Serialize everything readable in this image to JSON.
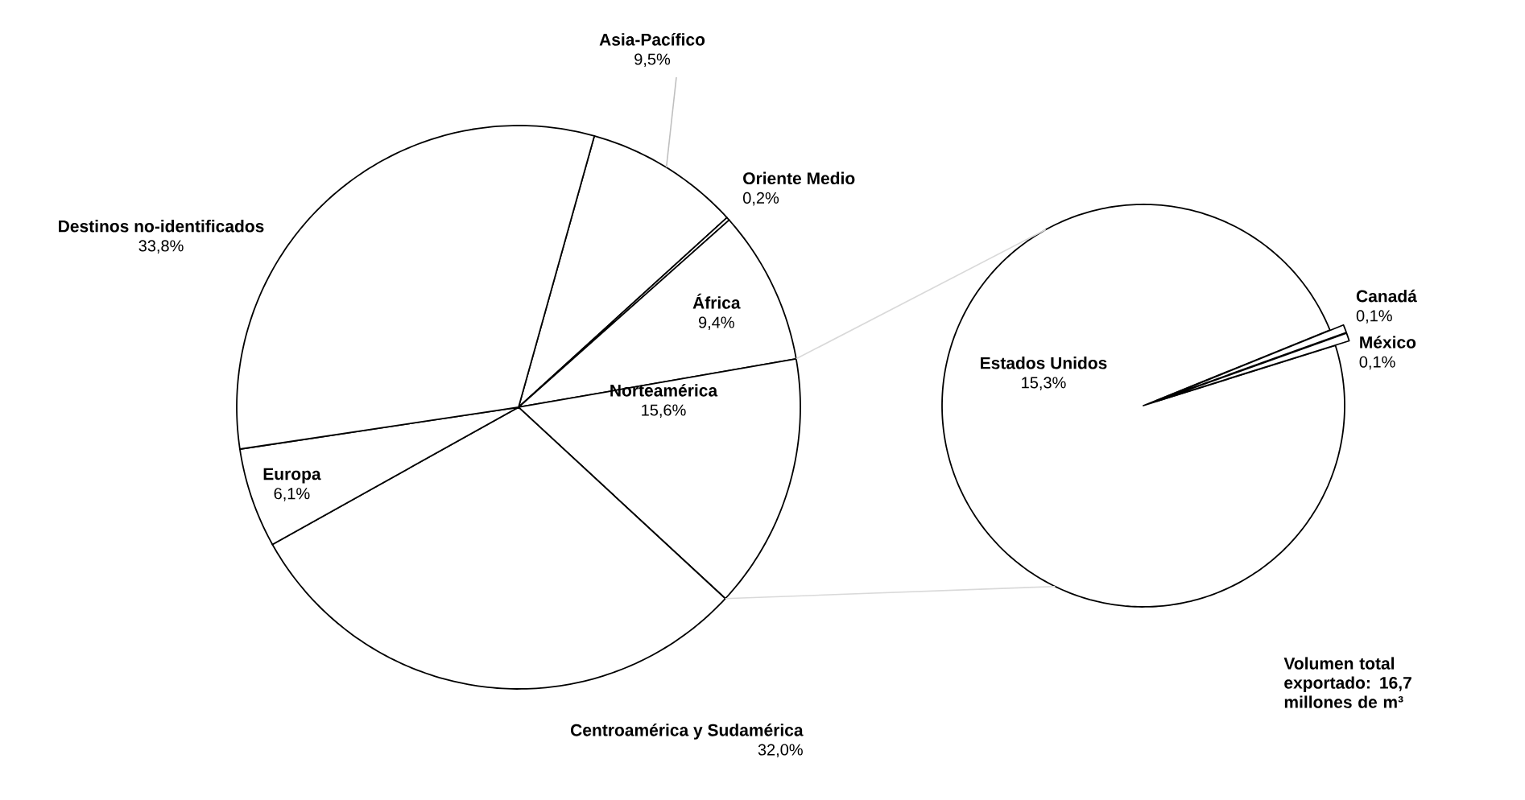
{
  "chart_data": [
    {
      "type": "pie",
      "categories": [
        "Asia-Pacífico",
        "Oriente Medio",
        "África",
        "Norteamérica",
        "Centroamérica y Sudamérica",
        "Europa",
        "Destinos no-identificados"
      ],
      "values": [
        9.5,
        0.2,
        9.4,
        15.6,
        32.0,
        6.1,
        33.8
      ],
      "value_labels": [
        "9,5%",
        "0,2%",
        "9,4%",
        "15,6%",
        "32,0%",
        "6,1%",
        "33,8%"
      ],
      "colors": [
        "#ffffff",
        "#ffffff",
        "#ffffff",
        "#ffffff",
        "#ffffff",
        "#ffffff",
        "#ffffff"
      ]
    },
    {
      "type": "pie",
      "categories": [
        "Estados Unidos",
        "Canadá",
        "México"
      ],
      "values": [
        15.3,
        0.1,
        0.1
      ],
      "value_labels": [
        "15,3%",
        "0,1%",
        "0,1%"
      ],
      "colors": [
        "#ffffff",
        "#ffffff",
        "#ffffff"
      ],
      "annotations": [
        "Volumen total exportado: 16,7 millones de m³"
      ]
    }
  ]
}
